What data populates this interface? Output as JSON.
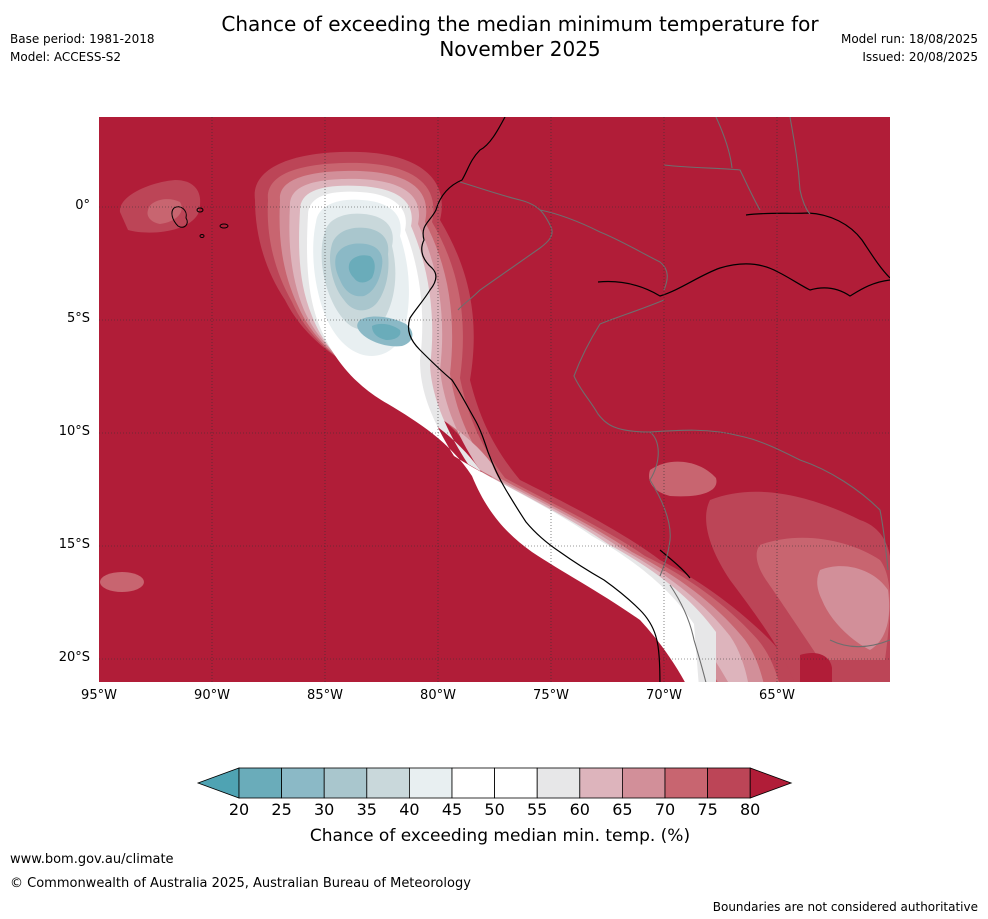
{
  "title_line1": "Chance of exceeding the median minimum temperature for",
  "title_line2": "November 2025",
  "base_period": "Base period: 1981-2018",
  "model": "Model: ACCESS-S2",
  "model_run": "Model run: 18/08/2025",
  "issued": "Issued: 20/08/2025",
  "lat_labels": [
    "0°",
    "5°S",
    "10°S",
    "15°S",
    "20°S"
  ],
  "lon_labels": [
    "95°W",
    "90°W",
    "85°W",
    "80°W",
    "75°W",
    "70°W",
    "65°W"
  ],
  "colorbar": {
    "ticks": [
      "20",
      "25",
      "30",
      "35",
      "40",
      "45",
      "50",
      "55",
      "60",
      "65",
      "70",
      "75",
      "80"
    ],
    "colors": [
      "#4fa3b3",
      "#6aacba",
      "#8bb9c6",
      "#a9c6cd",
      "#c9d8db",
      "#e8eff1",
      "#ffffff",
      "#ffffff",
      "#e7e7e8",
      "#ddb4bc",
      "#d28f99",
      "#c86570",
      "#bc4557",
      "#b11d38"
    ],
    "label": "Chance of exceeding median min. temp. (%)"
  },
  "footer_url": "www.bom.gov.au/climate",
  "footer_copyright": "© Commonwealth of Australia 2025, Australian Bureau of Meteorology",
  "footer_disclaimer": "Boundaries are not considered authoritative"
}
